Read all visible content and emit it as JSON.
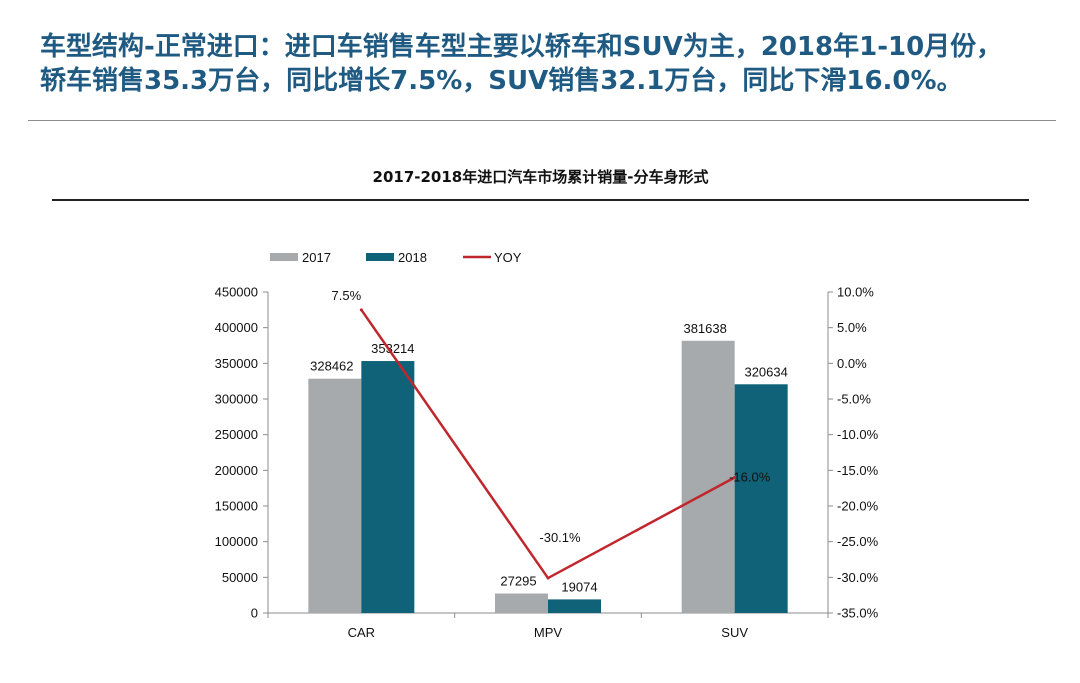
{
  "headline": {
    "line1": "车型结构-正常进口：进口车销售车型主要以轿车和SUV为主，2018年1-10月份，",
    "line2": "轿车销售35.3万台，同比增长7.5%，SUV销售32.1万台，同比下滑16.0%。"
  },
  "colors": {
    "headline": "#1f5a82",
    "s2017": "#a6aaad",
    "s2018": "#0f6278",
    "yoy": "#c0272d"
  },
  "chart_data": {
    "type": "bar",
    "title": "2017-2018年进口汽车市场累计销量-分车身形式",
    "categories": [
      "CAR",
      "MPV",
      "SUV"
    ],
    "series": [
      {
        "name": "2017",
        "type": "bar",
        "axis": "left",
        "values": [
          328462,
          27295,
          381638
        ],
        "labels": [
          "328462",
          "27295",
          "381638"
        ]
      },
      {
        "name": "2018",
        "type": "bar",
        "axis": "left",
        "values": [
          353214,
          19074,
          320634
        ],
        "labels": [
          "353214",
          "19074",
          "320634"
        ]
      },
      {
        "name": "YOY",
        "type": "line",
        "axis": "right",
        "values": [
          7.5,
          -30.1,
          -16.0
        ],
        "labels": [
          "7.5%",
          "-30.1%",
          "-16.0%"
        ]
      }
    ],
    "ylim": [
      0,
      450000
    ],
    "y_ticks": [
      "0",
      "50000",
      "100000",
      "150000",
      "200000",
      "250000",
      "300000",
      "350000",
      "400000",
      "450000"
    ],
    "y2lim": [
      -35,
      10
    ],
    "y2_ticks": [
      "-35.0%",
      "-30.0%",
      "-25.0%",
      "-20.0%",
      "-15.0%",
      "-10.0%",
      "-5.0%",
      "0.0%",
      "5.0%",
      "10.0%"
    ],
    "legend_position": "top-left",
    "grid": false
  }
}
